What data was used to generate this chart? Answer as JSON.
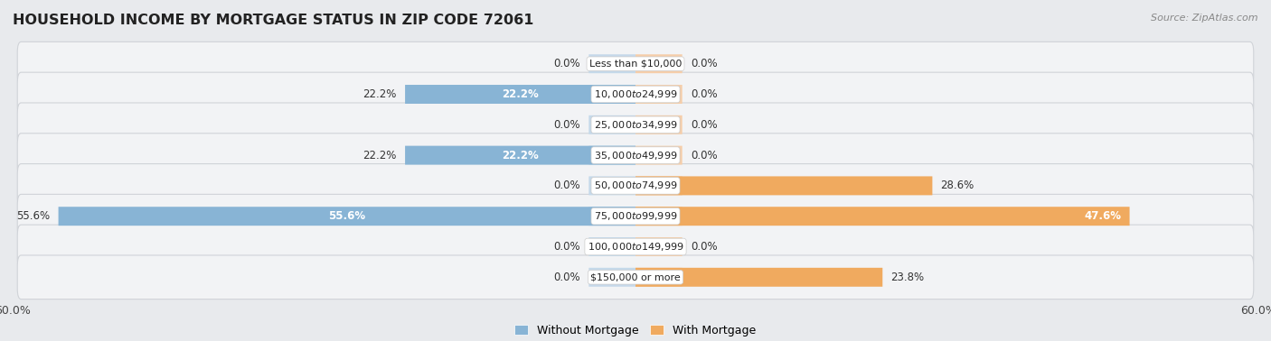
{
  "title": "HOUSEHOLD INCOME BY MORTGAGE STATUS IN ZIP CODE 72061",
  "source": "Source: ZipAtlas.com",
  "categories": [
    "Less than $10,000",
    "$10,000 to $24,999",
    "$25,000 to $34,999",
    "$35,000 to $49,999",
    "$50,000 to $74,999",
    "$75,000 to $99,999",
    "$100,000 to $149,999",
    "$150,000 or more"
  ],
  "without_mortgage": [
    0.0,
    22.2,
    0.0,
    22.2,
    0.0,
    55.6,
    0.0,
    0.0
  ],
  "with_mortgage": [
    0.0,
    0.0,
    0.0,
    0.0,
    28.6,
    47.6,
    0.0,
    23.8
  ],
  "color_without": "#88b4d5",
  "color_with": "#f0aa5f",
  "color_without_light": "#c5d9ea",
  "color_with_light": "#f5ceaa",
  "axis_limit": 60.0,
  "bg_color": "#e8eaed",
  "row_bg_color": "#f2f3f5",
  "row_border_color": "#d0d3d8",
  "title_fontsize": 11.5,
  "label_fontsize": 8.5,
  "tick_fontsize": 9,
  "legend_fontsize": 9,
  "bar_height": 0.62,
  "stub_size": 4.5
}
